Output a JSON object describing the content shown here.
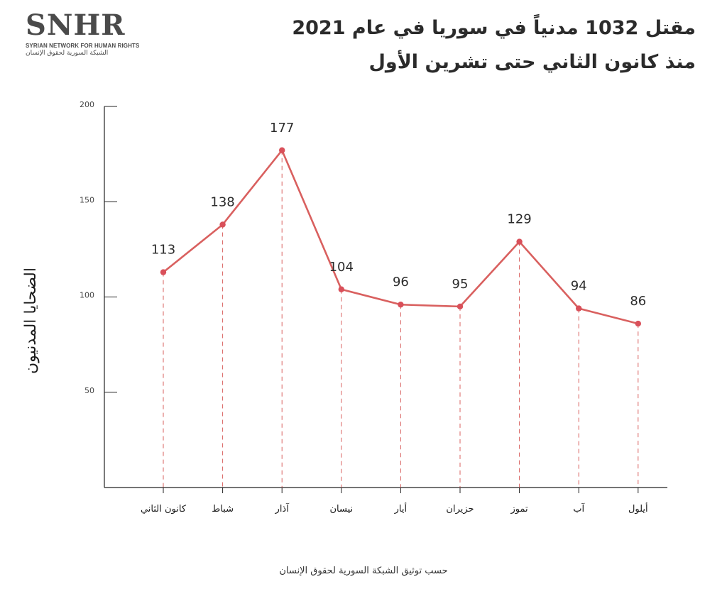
{
  "logo": {
    "mark": "SNHR",
    "english": "SYRIAN NETWORK FOR HUMAN RIGHTS",
    "arabic": "الشبكة السورية لحقوق الإنسان"
  },
  "title_line1": "مقتل 1032 مدنياً في سوريا في عام 2021",
  "title_line2": "منذ كانون الثاني حتى تشرين الأول",
  "source": "حسب توثيق الشبكة السورية لحقوق الإنسان",
  "colors": {
    "line": "#d9605f",
    "marker": "#d9505a",
    "axis": "#222222"
  },
  "chart_data": {
    "type": "line",
    "title": "مقتل 1032 مدنياً في سوريا في عام 2021",
    "subtitle": "منذ كانون الثاني حتى تشرين الأول",
    "xlabel": "",
    "ylabel": "الضحايا المدنيون",
    "ylim": [
      0,
      200
    ],
    "yticks": [
      50,
      100,
      150,
      200
    ],
    "categories": [
      "كانون الثاني",
      "شباط",
      "آذار",
      "نيسان",
      "أيار",
      "حزيران",
      "تموز",
      "آب",
      "أيلول"
    ],
    "series": [
      {
        "values": [
          113,
          138,
          177,
          104,
          96,
          95,
          129,
          94,
          86
        ]
      }
    ],
    "data_labels": true,
    "grid": false,
    "drop_lines": true
  }
}
